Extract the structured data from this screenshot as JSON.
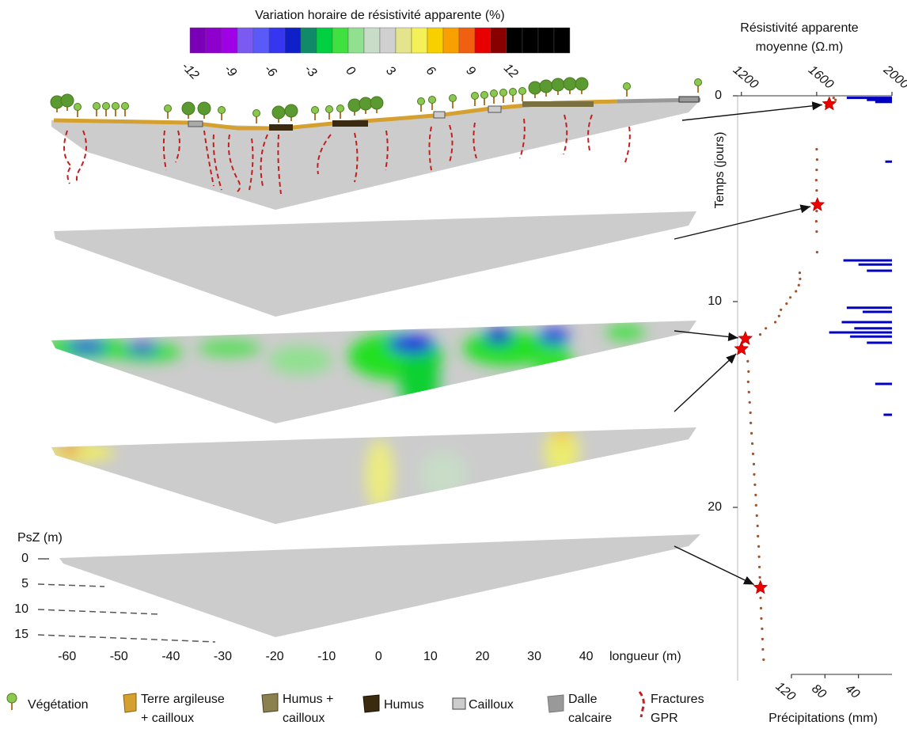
{
  "colorbar": {
    "title": "Variation horaire de résistivité apparente (%)",
    "ticks": [
      -12,
      -9,
      -6,
      -3,
      0,
      3,
      6,
      9,
      12
    ],
    "colors": [
      "#7a00b8",
      "#8e00cc",
      "#a000e6",
      "#7a5af0",
      "#5a5af8",
      "#3636f0",
      "#1020c8",
      "#108a68",
      "#00d040",
      "#40e040",
      "#90e090",
      "#c8dcc8",
      "#d0d0d0",
      "#e4e48c",
      "#f4f058",
      "#f8d000",
      "#f8a000",
      "#f06010",
      "#e80000",
      "#880000",
      "#000000",
      "#000000",
      "#000000",
      "#000000"
    ]
  },
  "sections": {
    "x_label": "longueur (m)",
    "xlim": [
      -63,
      62
    ],
    "xticks": [
      -60,
      -50,
      -40,
      -30,
      -20,
      -10,
      0,
      10,
      20,
      30,
      40
    ],
    "depth_label": "PsZ (m)",
    "depth_ticks": [
      0,
      5,
      10,
      15
    ]
  },
  "timeseries": {
    "x_label": [
      "Résistivité apparente",
      "moyenne (Ω.m)"
    ],
    "xlim": [
      1180,
      2000
    ],
    "xticks": [
      1200,
      1600,
      2000
    ],
    "y_label": "Temps (jours)",
    "ylim": [
      0,
      28
    ],
    "yticks": [
      0,
      10,
      20
    ],
    "resistivity": {
      "color": "#a0522d",
      "time": [
        0.1,
        0.2,
        0.3,
        0.5,
        2.6,
        3.1,
        3.6,
        4.1,
        4.6,
        5.1,
        5.6,
        6.1,
        6.6,
        7.6,
        8.6,
        8.9,
        9.2,
        9.5,
        9.8,
        10.1,
        10.4,
        10.7,
        11.0,
        11.3,
        11.6,
        12.9,
        13.4,
        13.9,
        14.4,
        14.9,
        15.4,
        15.9,
        16.4,
        16.9,
        17.4,
        17.9,
        18.4,
        18.9,
        19.4,
        19.9,
        20.4,
        20.9,
        21.4,
        21.9,
        22.4,
        22.9,
        23.4,
        24.4,
        24.9,
        25.4,
        25.9,
        26.4,
        26.9,
        27.4
      ],
      "values": [
        1690,
        1700,
        1660,
        1650,
        1600,
        1602,
        1600,
        1598,
        1600,
        1602,
        1600,
        1598,
        1600,
        1602,
        1510,
        1512,
        1505,
        1490,
        1460,
        1440,
        1410,
        1400,
        1380,
        1330,
        1300,
        1234,
        1238,
        1236,
        1240,
        1244,
        1248,
        1250,
        1254,
        1258,
        1262,
        1266,
        1268,
        1272,
        1276,
        1278,
        1282,
        1286,
        1288,
        1292,
        1294,
        1296,
        1298,
        1302,
        1304,
        1306,
        1310,
        1312,
        1314,
        1318
      ]
    },
    "stars": {
      "color": "#ee0000",
      "time": [
        0.4,
        5.3,
        11.8,
        12.3,
        23.9
      ],
      "values": [
        1667,
        1604,
        1221,
        1200,
        1301
      ]
    },
    "precip_label": "Précipitations (mm)",
    "precip_lim": [
      0,
      120
    ],
    "precip_ticks": [
      120,
      80,
      40
    ],
    "precipitation": {
      "color": "#0000c0",
      "time": [
        0.1,
        0.2,
        0.3,
        3.2,
        8.0,
        8.2,
        8.5,
        10.3,
        10.5,
        11.0,
        11.3,
        11.5,
        11.7,
        12.0,
        14.0,
        15.5
      ],
      "values": [
        54,
        30,
        20,
        8,
        58,
        40,
        30,
        54,
        35,
        60,
        45,
        75,
        50,
        30,
        20,
        10
      ]
    }
  },
  "legend": [
    [
      "Végétation"
    ],
    [
      "Terre argileuse",
      "+ cailloux"
    ],
    [
      "Humus +",
      "cailloux"
    ],
    [
      "Humus"
    ],
    [
      "Cailloux"
    ],
    [
      "Dalle",
      "calcaire"
    ],
    [
      "Fractures",
      "GPR"
    ]
  ]
}
